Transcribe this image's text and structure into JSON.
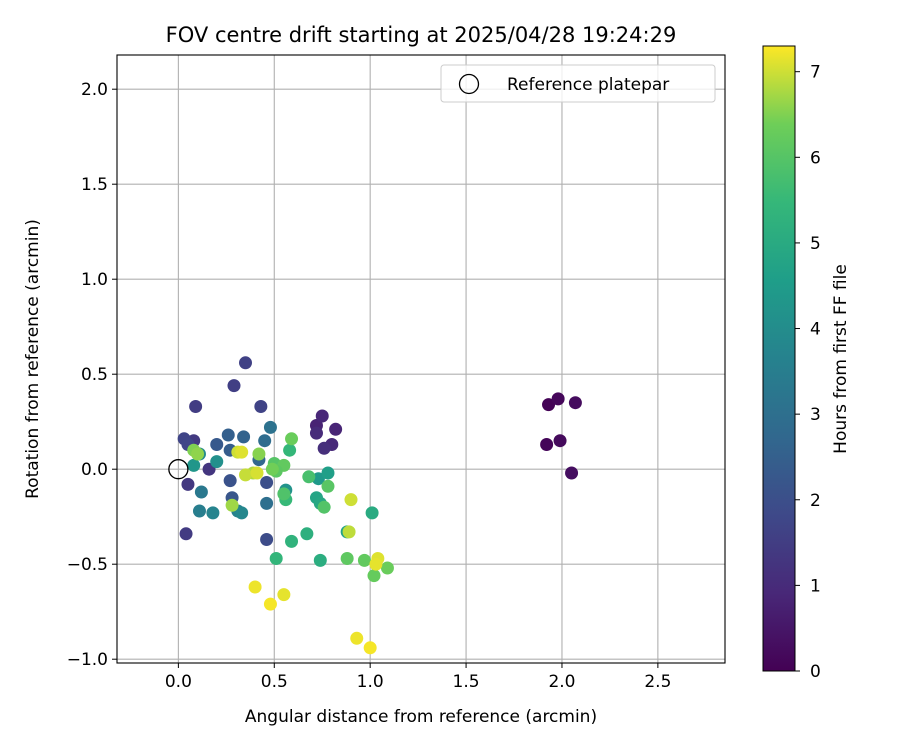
{
  "chart_data": {
    "type": "scatter",
    "title": "FOV centre drift starting at 2025/04/28 19:24:29",
    "xlabel": "Angular distance from reference (arcmin)",
    "ylabel": "Rotation from reference (arcmin)",
    "xlim": [
      -0.32,
      2.85
    ],
    "ylim": [
      -1.02,
      2.18
    ],
    "xticks": [
      0.0,
      0.5,
      1.0,
      1.5,
      2.0,
      2.5
    ],
    "xtick_labels": [
      "0.0",
      "0.5",
      "1.0",
      "1.5",
      "2.0",
      "2.5"
    ],
    "yticks": [
      -1.0,
      -0.5,
      0.0,
      0.5,
      1.0,
      1.5,
      2.0
    ],
    "ytick_labels": [
      "−1.0",
      "−0.5",
      "0.0",
      "0.5",
      "1.0",
      "1.5",
      "2.0"
    ],
    "grid": true,
    "legend": {
      "placement": "top-right",
      "entries": [
        "Reference platepar"
      ]
    },
    "reference_point": {
      "x": 0.0,
      "y": 0.0,
      "marker": "hollow-circle"
    },
    "colorbar": {
      "label": "Hours from first FF file",
      "colormap": "viridis",
      "range": [
        0,
        7.3
      ],
      "ticks": [
        0,
        1,
        2,
        3,
        4,
        5,
        6,
        7
      ],
      "tick_labels": [
        "0",
        "1",
        "2",
        "3",
        "4",
        "5",
        "6",
        "7"
      ]
    },
    "points": [
      {
        "x": 1.93,
        "y": 0.34,
        "c": 0.05
      },
      {
        "x": 1.98,
        "y": 0.37,
        "c": 0.15
      },
      {
        "x": 2.07,
        "y": 0.35,
        "c": 0.25
      },
      {
        "x": 1.92,
        "y": 0.13,
        "c": 0.1
      },
      {
        "x": 1.99,
        "y": 0.15,
        "c": 0.2
      },
      {
        "x": 2.05,
        "y": -0.02,
        "c": 0.3
      },
      {
        "x": 0.72,
        "y": 0.23,
        "c": 0.8
      },
      {
        "x": 0.75,
        "y": 0.28,
        "c": 0.9
      },
      {
        "x": 0.82,
        "y": 0.21,
        "c": 0.85
      },
      {
        "x": 0.72,
        "y": 0.19,
        "c": 1.0
      },
      {
        "x": 0.8,
        "y": 0.13,
        "c": 0.95
      },
      {
        "x": 0.76,
        "y": 0.11,
        "c": 1.1
      },
      {
        "x": 0.35,
        "y": 0.56,
        "c": 1.6
      },
      {
        "x": 0.29,
        "y": 0.44,
        "c": 1.55
      },
      {
        "x": 0.09,
        "y": 0.33,
        "c": 1.5
      },
      {
        "x": 0.43,
        "y": 0.33,
        "c": 1.65
      },
      {
        "x": 0.08,
        "y": 0.15,
        "c": 1.4
      },
      {
        "x": 0.03,
        "y": 0.16,
        "c": 1.7
      },
      {
        "x": 0.05,
        "y": 0.13,
        "c": 1.75
      },
      {
        "x": 0.16,
        "y": 0.0,
        "c": 1.3
      },
      {
        "x": 0.05,
        "y": -0.08,
        "c": 1.35
      },
      {
        "x": 0.04,
        "y": -0.34,
        "c": 1.45
      },
      {
        "x": 0.46,
        "y": -0.37,
        "c": 1.9
      },
      {
        "x": 0.46,
        "y": -0.07,
        "c": 2.0
      },
      {
        "x": 0.27,
        "y": -0.06,
        "c": 2.1
      },
      {
        "x": 0.28,
        "y": -0.15,
        "c": 2.2
      },
      {
        "x": 0.26,
        "y": 0.18,
        "c": 2.5
      },
      {
        "x": 0.34,
        "y": 0.17,
        "c": 2.6
      },
      {
        "x": 0.27,
        "y": 0.1,
        "c": 2.4
      },
      {
        "x": 0.2,
        "y": 0.13,
        "c": 2.3
      },
      {
        "x": 0.42,
        "y": 0.05,
        "c": 2.7
      },
      {
        "x": 0.45,
        "y": 0.15,
        "c": 2.9
      },
      {
        "x": 0.48,
        "y": 0.22,
        "c": 3.1
      },
      {
        "x": 0.46,
        "y": -0.18,
        "c": 3.0
      },
      {
        "x": 0.12,
        "y": -0.12,
        "c": 3.3
      },
      {
        "x": 0.11,
        "y": -0.22,
        "c": 3.5
      },
      {
        "x": 0.18,
        "y": -0.23,
        "c": 3.7
      },
      {
        "x": 0.31,
        "y": -0.22,
        "c": 3.6
      },
      {
        "x": 0.33,
        "y": -0.23,
        "c": 3.8
      },
      {
        "x": 0.11,
        "y": 0.08,
        "c": 3.9
      },
      {
        "x": 0.2,
        "y": 0.04,
        "c": 4.1
      },
      {
        "x": 0.08,
        "y": 0.02,
        "c": 4.3
      },
      {
        "x": 0.56,
        "y": -0.11,
        "c": 4.2
      },
      {
        "x": 0.73,
        "y": -0.05,
        "c": 4.4
      },
      {
        "x": 0.78,
        "y": -0.02,
        "c": 4.6
      },
      {
        "x": 0.72,
        "y": -0.15,
        "c": 4.8
      },
      {
        "x": 0.74,
        "y": -0.18,
        "c": 4.9
      },
      {
        "x": 0.88,
        "y": -0.33,
        "c": 4.7
      },
      {
        "x": 1.01,
        "y": -0.23,
        "c": 5.0
      },
      {
        "x": 0.74,
        "y": -0.48,
        "c": 5.1
      },
      {
        "x": 0.67,
        "y": -0.34,
        "c": 5.2
      },
      {
        "x": 0.59,
        "y": -0.38,
        "c": 5.3
      },
      {
        "x": 0.51,
        "y": -0.47,
        "c": 5.4
      },
      {
        "x": 0.56,
        "y": -0.16,
        "c": 5.5
      },
      {
        "x": 0.58,
        "y": 0.1,
        "c": 5.45
      },
      {
        "x": 0.59,
        "y": 0.16,
        "c": 6.3
      },
      {
        "x": 0.5,
        "y": 0.03,
        "c": 6.0
      },
      {
        "x": 0.55,
        "y": 0.02,
        "c": 6.2
      },
      {
        "x": 0.51,
        "y": -0.01,
        "c": 6.1
      },
      {
        "x": 0.49,
        "y": 0.0,
        "c": 6.4
      },
      {
        "x": 0.55,
        "y": -0.13,
        "c": 5.9
      },
      {
        "x": 0.68,
        "y": -0.04,
        "c": 5.8
      },
      {
        "x": 0.76,
        "y": -0.2,
        "c": 5.95
      },
      {
        "x": 0.78,
        "y": -0.09,
        "c": 6.05
      },
      {
        "x": 0.88,
        "y": -0.47,
        "c": 6.15
      },
      {
        "x": 0.97,
        "y": -0.48,
        "c": 6.2
      },
      {
        "x": 1.02,
        "y": -0.56,
        "c": 6.25
      },
      {
        "x": 1.09,
        "y": -0.52,
        "c": 6.3
      },
      {
        "x": 0.89,
        "y": -0.33,
        "c": 6.9
      },
      {
        "x": 0.08,
        "y": 0.1,
        "c": 6.5
      },
      {
        "x": 0.1,
        "y": 0.08,
        "c": 6.6
      },
      {
        "x": 0.28,
        "y": -0.19,
        "c": 6.7
      },
      {
        "x": 0.42,
        "y": 0.08,
        "c": 6.55
      },
      {
        "x": 0.39,
        "y": -0.02,
        "c": 6.8
      },
      {
        "x": 0.31,
        "y": 0.09,
        "c": 7.0
      },
      {
        "x": 0.33,
        "y": 0.09,
        "c": 7.1
      },
      {
        "x": 0.35,
        "y": -0.03,
        "c": 6.95
      },
      {
        "x": 0.41,
        "y": -0.02,
        "c": 7.05
      },
      {
        "x": 0.9,
        "y": -0.16,
        "c": 7.0
      },
      {
        "x": 1.04,
        "y": -0.47,
        "c": 7.1
      },
      {
        "x": 1.03,
        "y": -0.5,
        "c": 7.15
      },
      {
        "x": 0.4,
        "y": -0.62,
        "c": 7.2
      },
      {
        "x": 0.48,
        "y": -0.71,
        "c": 7.25
      },
      {
        "x": 0.55,
        "y": -0.66,
        "c": 7.15
      },
      {
        "x": 0.93,
        "y": -0.89,
        "c": 7.2
      },
      {
        "x": 1.0,
        "y": -0.94,
        "c": 7.25
      }
    ]
  }
}
